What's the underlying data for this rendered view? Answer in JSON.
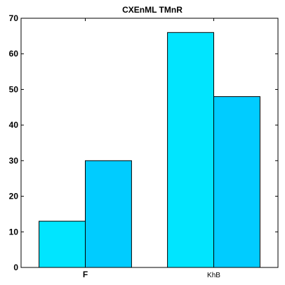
{
  "chart_data": {
    "type": "bar",
    "title": "CXEnML TMnR",
    "xlabel": "",
    "ylabel": "",
    "categories": [
      "F",
      "KhB"
    ],
    "category_label_weights": [
      "bold",
      "normal"
    ],
    "series": [
      {
        "values": [
          13,
          66
        ],
        "color": "#00e5ff"
      },
      {
        "values": [
          30,
          48
        ],
        "color": "#00ccff"
      }
    ],
    "ylim": [
      0,
      70
    ],
    "yticks": [
      0,
      10,
      20,
      30,
      40,
      50,
      60,
      70
    ],
    "grid": false,
    "legend": "none"
  }
}
